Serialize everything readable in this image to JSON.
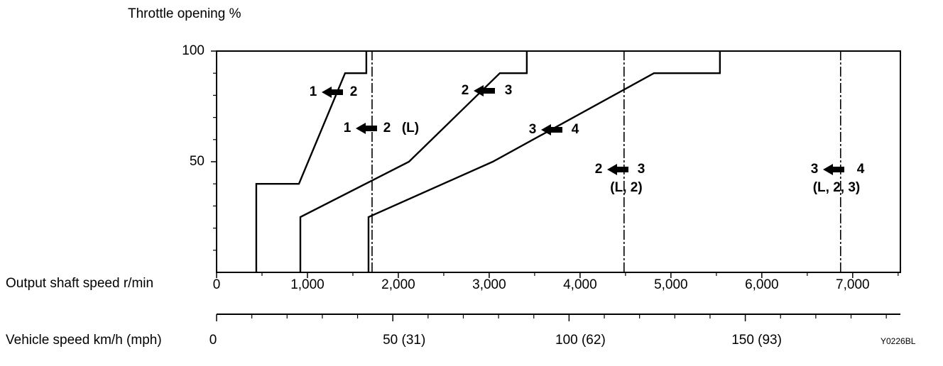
{
  "chart_data": {
    "type": "line",
    "ylabel": "Throttle opening %",
    "xlabel": "Output shaft speed r/min",
    "x2label": "Vehicle speed km/h (mph)",
    "code": "Y0226BL",
    "xlim": [
      0,
      7525
    ],
    "xticks": [
      0,
      {
        "value": 1000,
        "label": "1,000"
      },
      {
        "value": 2000,
        "label": "2,000"
      },
      {
        "value": 3000,
        "label": "3,000"
      },
      {
        "value": 4000,
        "label": "4,000"
      },
      {
        "value": 5000,
        "label": "5,000"
      },
      {
        "value": 6000,
        "label": "6,000"
      },
      {
        "value": 7000,
        "label": "7,000"
      }
    ],
    "xminorticks": [
      500,
      1500,
      2500,
      3500,
      4500,
      5500,
      6500,
      7500
    ],
    "ylim": [
      0,
      100
    ],
    "yticks": [
      50,
      100
    ],
    "yminorticks": [
      10,
      20,
      30,
      40,
      60,
      70,
      80,
      90
    ],
    "x2lim": [
      0,
      194
    ],
    "x2ticks": [
      0,
      {
        "value": 50,
        "label": "50 (31)"
      },
      {
        "value": 100,
        "label": "100 (62)"
      },
      {
        "value": 150,
        "label": "150 (93)"
      }
    ],
    "x2minorticks": [
      10,
      20,
      30,
      40,
      60,
      70,
      80,
      90,
      110,
      120,
      130,
      140,
      160,
      170,
      180,
      190
    ],
    "color": "#000000",
    "series": [
      {
        "from": "1",
        "to": "2",
        "line_style": "solid",
        "x": [
          437,
          437,
          906,
          1414,
          1648,
          1648
        ],
        "values": [
          0,
          40,
          40,
          90,
          90,
          100
        ]
      },
      {
        "from": "2",
        "to": "3",
        "line_style": "solid",
        "x": [
          922,
          922,
          2117,
          3117,
          3414,
          3414
        ],
        "values": [
          0,
          25,
          50,
          90,
          90,
          100
        ]
      },
      {
        "from": "3",
        "to": "4",
        "line_style": "solid",
        "x": [
          1672,
          1672,
          3039,
          4813,
          5539,
          5539
        ],
        "values": [
          0,
          25,
          50,
          90,
          90,
          100
        ]
      },
      {
        "from": "1",
        "to": "2",
        "note": "(L)",
        "line_style": "dashed",
        "x": [
          1711,
          1711
        ],
        "values": [
          0,
          100
        ]
      },
      {
        "from": "2",
        "to": "3",
        "note": "(L, 2)",
        "line_style": "dashed",
        "x": [
          4484,
          4484
        ],
        "values": [
          0,
          100
        ]
      },
      {
        "from": "3",
        "to": "4",
        "note": "(L, 2, 3)",
        "line_style": "dashed",
        "x": [
          6867,
          6867
        ],
        "values": [
          0,
          100
        ]
      }
    ]
  }
}
